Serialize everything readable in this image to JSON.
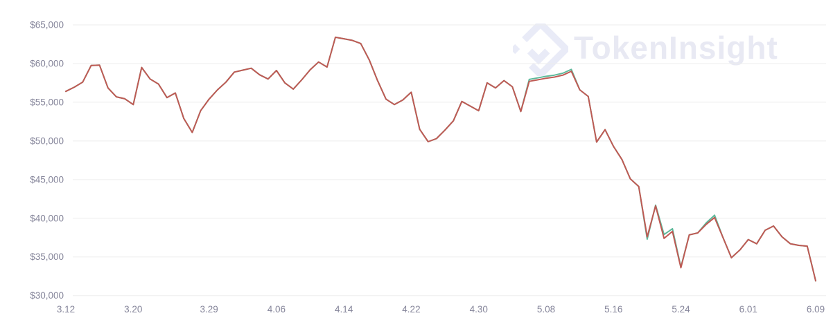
{
  "watermark": {
    "brand": "TokenInsight"
  },
  "colors": {
    "line_primary": "#bf5a54",
    "line_secondary": "#5eb99b",
    "grid": "#ededed",
    "tick_text": "#85859a",
    "watermark": "#e8e9f3"
  },
  "chart_data": {
    "type": "line",
    "title": "",
    "xlabel": "",
    "ylabel": "",
    "legend": "none",
    "grid": "horizontal-only",
    "ylim": [
      30000,
      65000
    ],
    "y_ticks": [
      {
        "value": 30000,
        "label": "$30,000"
      },
      {
        "value": 35000,
        "label": "$35,000"
      },
      {
        "value": 40000,
        "label": "$40,000"
      },
      {
        "value": 45000,
        "label": "$45,000"
      },
      {
        "value": 50000,
        "label": "$50,000"
      },
      {
        "value": 55000,
        "label": "$55,000"
      },
      {
        "value": 60000,
        "label": "$60,000"
      },
      {
        "value": 65000,
        "label": "$65,000"
      }
    ],
    "x_ticks": [
      {
        "day_index": 0,
        "label": "3.12"
      },
      {
        "day_index": 8,
        "label": "3.20"
      },
      {
        "day_index": 17,
        "label": "3.29"
      },
      {
        "day_index": 25,
        "label": "4.06"
      },
      {
        "day_index": 33,
        "label": "4.14"
      },
      {
        "day_index": 41,
        "label": "4.22"
      },
      {
        "day_index": 49,
        "label": "4.30"
      },
      {
        "day_index": 57,
        "label": "5.08"
      },
      {
        "day_index": 65,
        "label": "5.16"
      },
      {
        "day_index": 73,
        "label": "5.24"
      },
      {
        "day_index": 81,
        "label": "6.01"
      },
      {
        "day_index": 89,
        "label": "6.09"
      }
    ],
    "series": [
      {
        "name": "price-secondary-green",
        "color": "#5eb99b",
        "values": [
          56400,
          56950,
          57600,
          59750,
          59800,
          56850,
          55700,
          55450,
          54700,
          59500,
          58000,
          57350,
          55600,
          56200,
          52900,
          51100,
          53900,
          55400,
          56600,
          57600,
          58900,
          59150,
          59400,
          58550,
          58000,
          59100,
          57500,
          56700,
          57900,
          59200,
          60200,
          59550,
          63400,
          63200,
          63000,
          62600,
          60500,
          57800,
          55400,
          54700,
          55300,
          56300,
          51500,
          49900,
          50300,
          51400,
          52600,
          55100,
          54500,
          53900,
          57500,
          56850,
          57800,
          57000,
          53800,
          57950,
          58150,
          58350,
          58500,
          58750,
          59250,
          56600,
          55750,
          49850,
          51450,
          49300,
          47600,
          45100,
          44100,
          37300,
          41700,
          37900,
          38650,
          33700,
          37850,
          38100,
          39400,
          40400,
          37500,
          34900,
          35900,
          37250,
          36700,
          38450,
          39000,
          37600,
          36700,
          36500,
          36400,
          31900
        ]
      },
      {
        "name": "price-primary-red",
        "color": "#bf5a54",
        "values": [
          56400,
          56950,
          57600,
          59750,
          59800,
          56850,
          55700,
          55450,
          54700,
          59500,
          58000,
          57350,
          55600,
          56200,
          52900,
          51100,
          53900,
          55400,
          56600,
          57600,
          58900,
          59150,
          59400,
          58550,
          58000,
          59100,
          57500,
          56700,
          57900,
          59200,
          60200,
          59550,
          63400,
          63200,
          63000,
          62600,
          60500,
          57800,
          55400,
          54700,
          55300,
          56300,
          51500,
          49900,
          50300,
          51400,
          52600,
          55100,
          54500,
          53900,
          57500,
          56850,
          57800,
          57000,
          53800,
          57700,
          57900,
          58100,
          58250,
          58500,
          59000,
          56600,
          55750,
          49850,
          51450,
          49300,
          47600,
          45100,
          44100,
          37600,
          41600,
          37400,
          38300,
          33600,
          37850,
          38100,
          39200,
          40100,
          37500,
          34900,
          35900,
          37250,
          36700,
          38450,
          39000,
          37600,
          36700,
          36500,
          36400,
          31900
        ]
      }
    ]
  }
}
